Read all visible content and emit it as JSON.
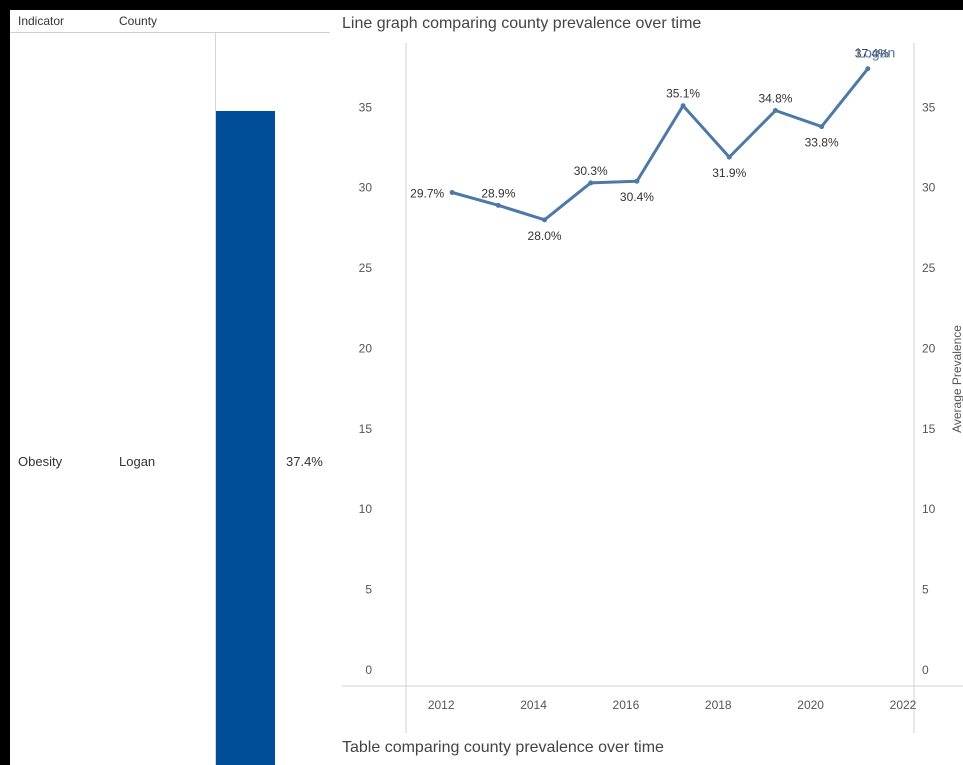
{
  "table": {
    "headers": {
      "indicator": "Indicator",
      "county": "County"
    },
    "row": {
      "indicator": "Obesity",
      "county": "Logan",
      "value": 37.4,
      "value_label": "37.4%"
    },
    "bar_color": "#004e98"
  },
  "line_title": "Line graph comparing county prevalence over time",
  "table_title": "Table comparing county prevalence over time",
  "chart_data": {
    "type": "line",
    "title": "Line graph comparing county prevalence over time",
    "xlabel": "",
    "ylabel": "Average Prevalence",
    "x": [
      2012,
      2013,
      2014,
      2015,
      2016,
      2017,
      2018,
      2019,
      2020,
      2021
    ],
    "series": [
      {
        "name": "Logan",
        "values": [
          29.7,
          28.9,
          28.0,
          30.3,
          30.4,
          35.1,
          31.9,
          34.8,
          33.8,
          37.4
        ],
        "labels": [
          "29.7%",
          "28.9%",
          "28.0%",
          "30.3%",
          "30.4%",
          "35.1%",
          "31.9%",
          "34.8%",
          "33.8%",
          "37.4%"
        ],
        "color": "#4e79a7"
      }
    ],
    "xlim": [
      2011,
      2022
    ],
    "ylim": [
      -1,
      39
    ],
    "xticks": [
      2012,
      2014,
      2016,
      2018,
      2020,
      2022
    ],
    "yticks": [
      0,
      5,
      10,
      15,
      20,
      25,
      30,
      35
    ],
    "grid": false,
    "legend": "none"
  }
}
